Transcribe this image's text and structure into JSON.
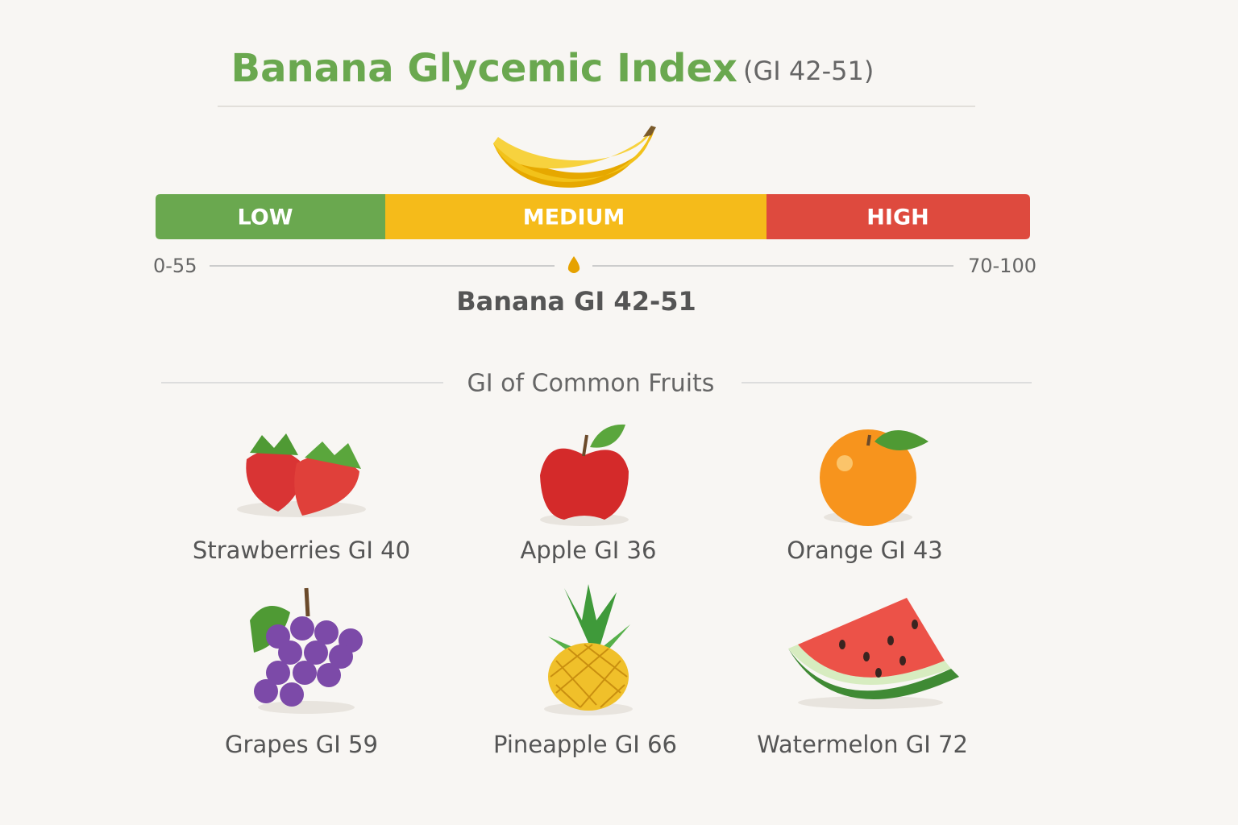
{
  "header": {
    "title": "Banana Glycemic Index",
    "subtitle": "(GI 42-51)"
  },
  "scale": {
    "segments": [
      "LOW",
      "MEDIUM",
      "HIGH"
    ],
    "low_range": "0-55",
    "high_range": "70-100",
    "marker_label": "Banana GI 42-51"
  },
  "section": {
    "title": "GI of Common Fruits"
  },
  "fruits": [
    "Strawberries GI 40",
    "Apple GI 36",
    "Orange GI 43",
    "Grapes GI 59",
    "Pineapple GI 66",
    "Watermelon GI 72"
  ]
}
